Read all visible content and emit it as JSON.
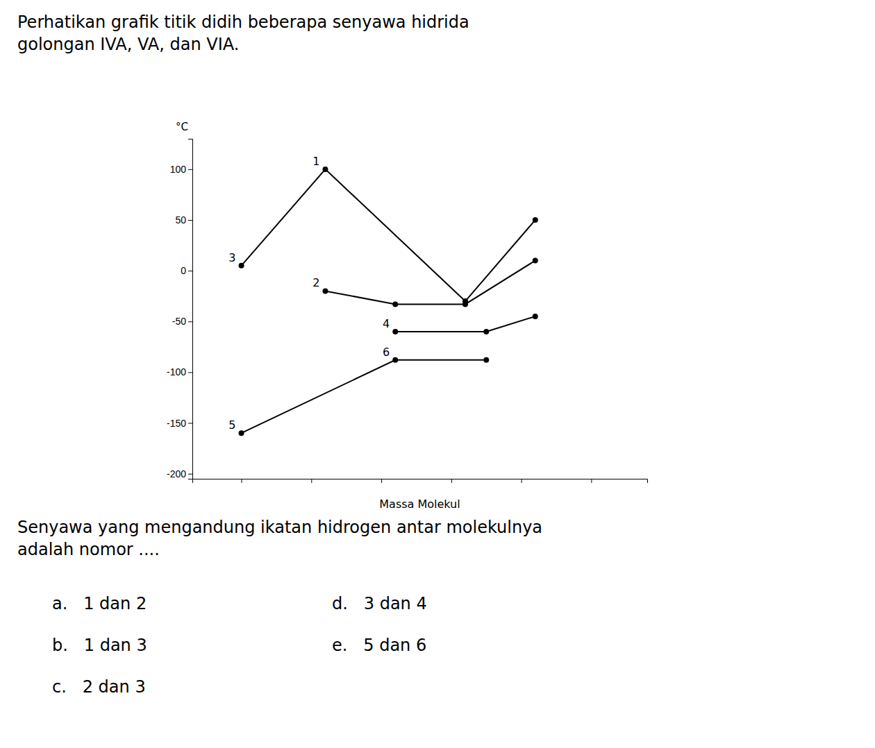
{
  "chart_data": {
    "type": "line",
    "title": "Perhatikan grafik titik didih beberapa senyawa hidrida\ngolongan IVA, VA, dan VIA.",
    "subtitle": "Senyawa yang mengandung ikatan hidrogen antar molekulnya\nadalah nomor ....",
    "xlabel": "Massa Molekul",
    "ylabel": "°C",
    "xlim": [
      0.3,
      6.8
    ],
    "ylim": [
      -205,
      130
    ],
    "xticks": [
      1.0,
      2.0,
      3.0,
      4.0,
      5.0,
      6.0
    ],
    "yticks": [
      100,
      50,
      0,
      -50,
      -100,
      -150,
      -200
    ],
    "tick_labels": "y",
    "grid": false,
    "color": "#000000",
    "marker": "circle",
    "series": [
      {
        "x": [
          1.0,
          2.2,
          4.2,
          5.2
        ],
        "values": [
          5,
          100,
          -30,
          50
        ],
        "point_labels": [
          "3",
          "1",
          null,
          null
        ]
      },
      {
        "x": [
          2.2,
          3.2,
          4.2,
          5.2
        ],
        "values": [
          -20,
          -33,
          -33,
          10
        ],
        "point_labels": [
          "2",
          null,
          null,
          null
        ]
      },
      {
        "x": [
          1.0,
          3.2,
          4.5
        ],
        "values": [
          -160,
          -88,
          -88
        ],
        "point_labels": [
          "5",
          "6",
          null
        ]
      },
      {
        "x": [
          3.2,
          4.5,
          5.2
        ],
        "values": [
          -60,
          -60,
          -45
        ],
        "point_labels": [
          "4",
          null,
          null
        ]
      }
    ],
    "answers": [
      [
        "a.   1 dan 2",
        "d.   3 dan 4"
      ],
      [
        "b.   1 dan 3",
        "e.   5 dan 6"
      ],
      [
        "c.   2 dan 3"
      ]
    ]
  }
}
